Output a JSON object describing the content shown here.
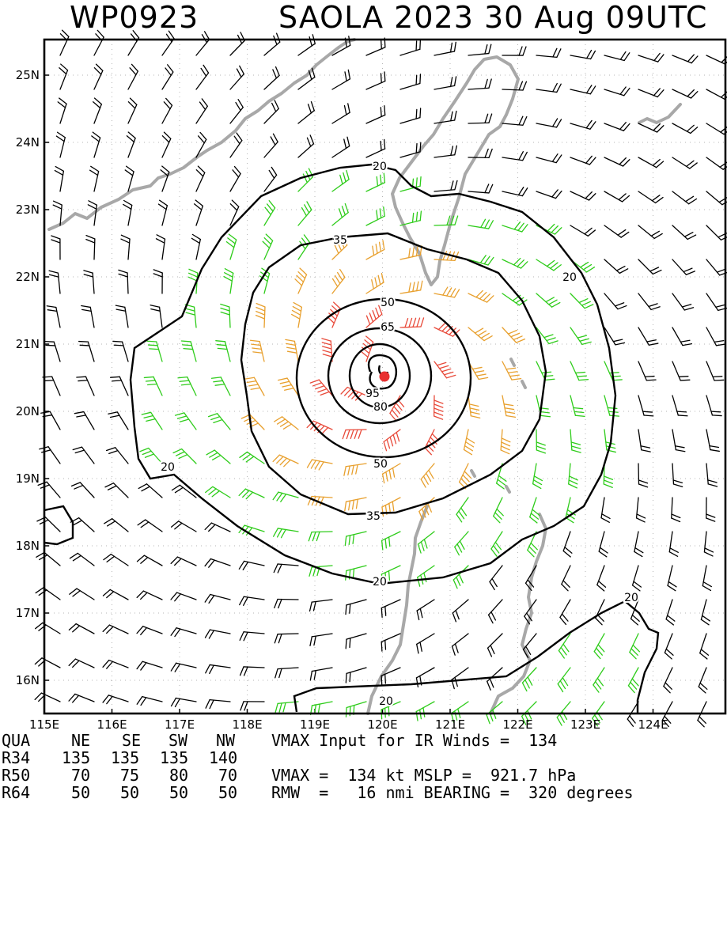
{
  "title": {
    "storm_id": "WP0923",
    "storm_info": "SAOLA 2023 30 Aug 09UTC"
  },
  "axes": {
    "lat_labels": [
      "25N",
      "24N",
      "23N",
      "22N",
      "21N",
      "20N",
      "19N",
      "18N",
      "17N",
      "16N"
    ],
    "lon_labels": [
      "115E",
      "116E",
      "117E",
      "118E",
      "119E",
      "120E",
      "121E",
      "122E",
      "123E",
      "124E"
    ]
  },
  "contours": {
    "labels": [
      "20",
      "20",
      "20",
      "20",
      "20",
      "35",
      "35",
      "50",
      "50",
      "65",
      "80",
      "95"
    ]
  },
  "colors": {
    "barb_weak": "#000000",
    "barb_34kt": "#2ecc1a",
    "barb_50kt": "#e8a02e",
    "barb_64kt": "#e84a3a",
    "coastline": "#a8a8a8",
    "contour": "#000000",
    "center_marker": "#e83030"
  },
  "footer": {
    "quadrant_header": [
      "QUA",
      "NE",
      "SE",
      "SW",
      "NW"
    ],
    "r34": [
      "R34",
      "135",
      "135",
      "135",
      "140"
    ],
    "r50": [
      "R50",
      "70",
      "75",
      "80",
      "70"
    ],
    "r64": [
      "R64",
      "50",
      "50",
      "50",
      "50"
    ],
    "vmax_input": "VMAX Input for IR Winds =  134",
    "vmax_line": "VMAX =  134 kt MSLP =  921.7 hPa",
    "rmw_line": "RMW  =   16 nmi BEARING =  320 degrees"
  }
}
